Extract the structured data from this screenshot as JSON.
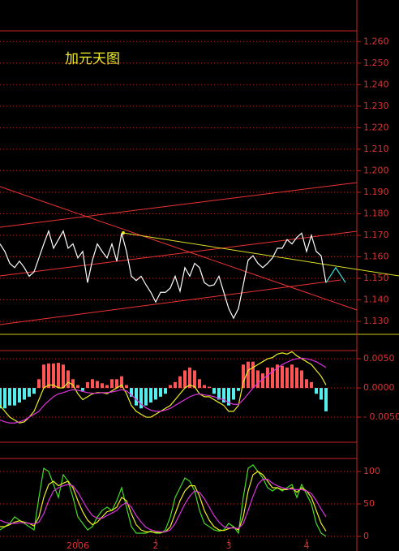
{
  "chart_data": [
    {
      "type": "line",
      "title": "加元天图",
      "ylim": [
        1.124,
        1.265
      ],
      "grid": true,
      "yticks": [
        {
          "value": 1.26,
          "label": "1.260"
        },
        {
          "value": 1.25,
          "label": "1.250"
        },
        {
          "value": 1.24,
          "label": "1.240"
        },
        {
          "value": 1.23,
          "label": "1.230"
        },
        {
          "value": 1.22,
          "label": "1.220"
        },
        {
          "value": 1.21,
          "label": "1.210"
        },
        {
          "value": 1.2,
          "label": "1.200"
        },
        {
          "value": 1.19,
          "label": "1.190"
        },
        {
          "value": 1.18,
          "label": "1.180"
        },
        {
          "value": 1.17,
          "label": "1.170"
        },
        {
          "value": 1.16,
          "label": "1.160"
        },
        {
          "value": 1.15,
          "label": "1.150"
        },
        {
          "value": 1.14,
          "label": "1.140"
        },
        {
          "value": 1.13,
          "label": "1.130"
        }
      ],
      "series": [
        {
          "type": "line",
          "color": "#ffffff",
          "values": [
            1.166,
            1.1625,
            1.157,
            1.155,
            1.158,
            1.155,
            1.151,
            1.153,
            1.1595,
            1.166,
            1.172,
            1.164,
            1.168,
            1.172,
            1.164,
            1.166,
            1.1595,
            1.1625,
            1.148,
            1.1585,
            1.166,
            1.1625,
            1.1595,
            1.166,
            1.158,
            1.171,
            1.1625,
            1.151,
            1.149,
            1.151,
            1.147,
            1.1435,
            1.139,
            1.1435,
            1.1435,
            1.1455,
            1.151,
            1.144,
            1.155,
            1.151,
            1.157,
            1.155,
            1.148,
            1.1465,
            1.147,
            1.151,
            1.1435,
            1.136,
            1.1315,
            1.136,
            1.147,
            1.1585,
            1.1605,
            1.157,
            1.155,
            1.157,
            1.1595,
            1.164,
            1.164,
            1.168,
            1.166,
            1.169,
            1.171,
            1.1625,
            1.17,
            1.1625,
            1.1605,
            1.148
          ]
        },
        {
          "type": "line",
          "color": "#33dddd",
          "x": [
            67,
            69,
            71
          ],
          "values": [
            1.148,
            1.155,
            1.148
          ]
        }
      ]
    },
    {
      "type": "bar",
      "ylim": [
        -0.0093,
        0.0064
      ],
      "grid": true,
      "yticks": [
        {
          "value": 0.005,
          "label": "0.0050"
        },
        {
          "value": 0,
          "label": "0.0000"
        },
        {
          "value": -0.005,
          "label": "- 0.0050"
        }
      ],
      "series": [
        {
          "type": "bar",
          "color": "#ff5555",
          "negative_color": "#55eeee",
          "values": [
            -0.0035,
            -0.0035,
            -0.003,
            -0.003,
            -0.0025,
            -0.002,
            -0.0015,
            -0.001,
            0.0015,
            0.004,
            0.0042,
            0.0042,
            0.0043,
            0.004,
            0.003,
            0.0015,
            0.0005,
            -0.0005,
            0.001,
            0.0015,
            0.0012,
            0.0008,
            0.0005,
            0.0015,
            0.0015,
            0.002,
            0.0005,
            -0.0015,
            -0.003,
            -0.0035,
            -0.003,
            -0.0025,
            -0.002,
            -0.0015,
            -0.001,
            0.0005,
            0.001,
            0.002,
            0.003,
            0.0035,
            0.003,
            0.0015,
            0.0005,
            0.0002,
            -0.001,
            -0.002,
            -0.0025,
            -0.003,
            -0.002,
            -0.0005,
            0.004,
            0.0045,
            0.0045,
            0.003,
            0.0025,
            0.0035,
            0.0035,
            0.004,
            0.0038,
            0.0035,
            0.004,
            0.0035,
            0.003,
            0.0015,
            0.001,
            -0.001,
            -0.002,
            -0.004
          ]
        },
        {
          "type": "line",
          "color": "#eeee22",
          "values": [
            -0.003,
            -0.004,
            -0.005,
            -0.0055,
            -0.006,
            -0.0058,
            -0.005,
            -0.004,
            -0.002,
            0.0,
            0.0005,
            0.0005,
            0.0,
            0.0,
            0.001,
            0.0005,
            -0.001,
            -0.002,
            -0.0015,
            -0.001,
            -0.0008,
            -0.0008,
            -0.001,
            -0.0005,
            0.0,
            0.0005,
            -0.001,
            -0.003,
            -0.004,
            -0.0045,
            -0.005,
            -0.005,
            -0.0045,
            -0.004,
            -0.0035,
            -0.003,
            -0.002,
            -0.001,
            0.0,
            0.0005,
            0.0002,
            -0.001,
            -0.0015,
            -0.0015,
            -0.002,
            -0.0025,
            -0.003,
            -0.004,
            -0.004,
            -0.003,
            0.001,
            0.003,
            0.0035,
            0.004,
            0.0045,
            0.005,
            0.0052,
            0.0058,
            0.006,
            0.0058,
            0.0062,
            0.0055,
            0.005,
            0.0045,
            0.004,
            0.003,
            0.002,
            0.0005
          ]
        },
        {
          "type": "line",
          "color": "#dd33dd",
          "values": [
            -0.0055,
            -0.0058,
            -0.006,
            -0.006,
            -0.0058,
            -0.0055,
            -0.005,
            -0.0045,
            -0.004,
            -0.003,
            -0.0022,
            -0.0015,
            -0.001,
            -0.0008,
            -0.0005,
            -0.0003,
            -0.0004,
            -0.0006,
            -0.0008,
            -0.0009,
            -0.0009,
            -0.0008,
            -0.0008,
            -0.0007,
            -0.0005,
            -0.0003,
            -0.0005,
            -0.0012,
            -0.002,
            -0.0028,
            -0.0034,
            -0.0038,
            -0.004,
            -0.004,
            -0.0038,
            -0.0035,
            -0.003,
            -0.0025,
            -0.002,
            -0.0015,
            -0.0012,
            -0.001,
            -0.0012,
            -0.0013,
            -0.0015,
            -0.0018,
            -0.002,
            -0.0025,
            -0.0028,
            -0.0028,
            -0.002,
            -0.001,
            0.0,
            0.0008,
            0.0015,
            0.0022,
            0.0028,
            0.0034,
            0.004,
            0.0044,
            0.0048,
            0.005,
            0.0051,
            0.005,
            0.0048,
            0.0045,
            0.004,
            0.0035
          ]
        }
      ]
    },
    {
      "type": "line",
      "ylim": [
        -11.25,
        120
      ],
      "grid": true,
      "yticks": [
        100,
        50,
        0
      ],
      "xticks": [
        {
          "value": 16,
          "label": "2006"
        },
        {
          "value": 32,
          "label": "2"
        },
        {
          "value": 47,
          "label": "3"
        },
        {
          "value": 63,
          "label": "4"
        }
      ],
      "series": [
        {
          "type": "line",
          "color": "#44dd22",
          "values": [
            10,
            15,
            20,
            30,
            25,
            20,
            15,
            10,
            60,
            105,
            100,
            80,
            60,
            95,
            85,
            60,
            30,
            20,
            10,
            15,
            30,
            40,
            45,
            40,
            55,
            75,
            45,
            15,
            5,
            5,
            5,
            8,
            5,
            5,
            10,
            30,
            60,
            75,
            90,
            85,
            70,
            40,
            20,
            15,
            10,
            8,
            10,
            20,
            15,
            5,
            60,
            105,
            110,
            100,
            90,
            75,
            70,
            75,
            70,
            75,
            80,
            60,
            80,
            65,
            50,
            20,
            5,
            0
          ]
        },
        {
          "type": "line",
          "color": "#eeee22",
          "values": [
            15,
            15,
            18,
            22,
            24,
            22,
            20,
            16,
            30,
            60,
            80,
            85,
            78,
            82,
            85,
            75,
            55,
            38,
            25,
            18,
            22,
            30,
            38,
            40,
            45,
            60,
            55,
            35,
            18,
            10,
            7,
            7,
            6,
            6,
            7,
            15,
            35,
            55,
            70,
            78,
            78,
            62,
            40,
            25,
            15,
            10,
            9,
            12,
            14,
            10,
            30,
            70,
            95,
            100,
            95,
            85,
            75,
            75,
            72,
            72,
            75,
            68,
            75,
            70,
            60,
            40,
            20,
            8
          ]
        },
        {
          "type": "line",
          "color": "#dd33dd",
          "values": [
            25,
            22,
            20,
            20,
            21,
            21,
            20,
            19,
            22,
            35,
            55,
            70,
            75,
            78,
            80,
            78,
            68,
            55,
            42,
            32,
            28,
            28,
            32,
            36,
            40,
            48,
            52,
            45,
            32,
            22,
            14,
            10,
            8,
            7,
            7,
            10,
            20,
            35,
            50,
            62,
            70,
            68,
            58,
            45,
            32,
            22,
            15,
            13,
            13,
            12,
            20,
            40,
            62,
            80,
            88,
            88,
            82,
            78,
            75,
            73,
            73,
            72,
            72,
            70,
            66,
            55,
            42,
            30
          ]
        }
      ]
    }
  ]
}
